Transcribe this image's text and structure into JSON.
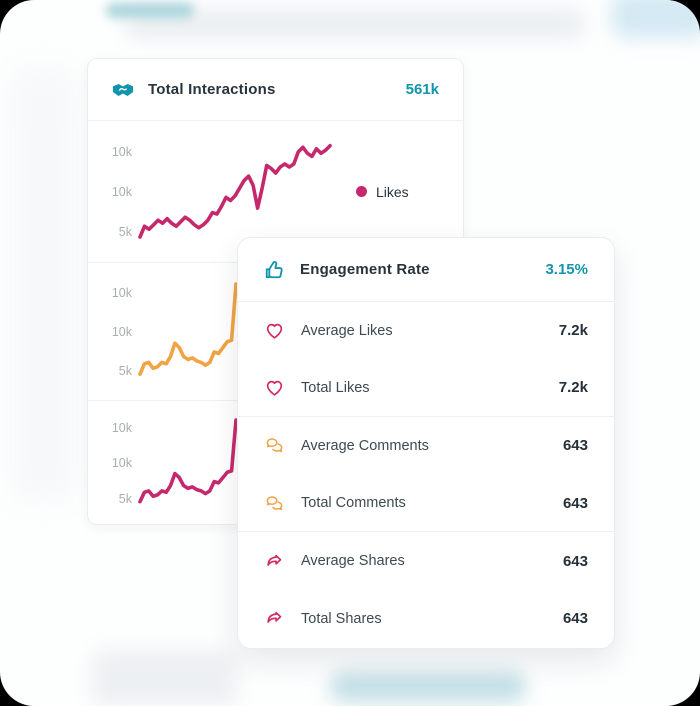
{
  "colors": {
    "accent_teal": "#1295AB",
    "pink": "#C6296B",
    "orange": "#F0A443",
    "dark_text": "#28333C"
  },
  "interactions_card": {
    "icon": "handshake-icon",
    "title": "Total Interactions",
    "value": "561k"
  },
  "engagement_card": {
    "icon": "thumbs-up-icon",
    "title": "Engagement Rate",
    "value": "3.15%",
    "rows": [
      {
        "icon": "heart-icon",
        "label": "Average Likes",
        "value": "7.2k",
        "group_end": false
      },
      {
        "icon": "heart-icon",
        "label": "Total Likes",
        "value": "7.2k",
        "group_end": true
      },
      {
        "icon": "comments-icon",
        "label": "Average Comments",
        "value": "643",
        "group_end": false
      },
      {
        "icon": "comments-icon",
        "label": "Total Comments",
        "value": "643",
        "group_end": true
      },
      {
        "icon": "share-icon",
        "label": "Average Shares",
        "value": "643",
        "group_end": false
      },
      {
        "icon": "share-icon",
        "label": "Total Shares",
        "value": "643",
        "group_end": false
      }
    ]
  },
  "chart_data": [
    {
      "type": "line",
      "legend": "Likes",
      "color": "#C6296B",
      "ylabels": [
        "10k",
        "10k",
        "5k"
      ],
      "ylim": [
        4.0,
        11.5
      ],
      "values": [
        4.7,
        5.4,
        5.2,
        5.5,
        5.8,
        5.6,
        5.9,
        5.6,
        5.4,
        5.7,
        6.0,
        5.8,
        5.5,
        5.3,
        5.5,
        5.8,
        6.3,
        6.2,
        6.7,
        7.3,
        7.1,
        7.4,
        7.9,
        8.4,
        8.7,
        8.1,
        6.6,
        7.9,
        9.4,
        9.2,
        8.9,
        9.3,
        9.5,
        9.3,
        9.5,
        10.3,
        10.6,
        10.2,
        10.0,
        10.5,
        10.2,
        10.4,
        10.7
      ]
    },
    {
      "type": "line",
      "color": "#F0A443",
      "ylabels": [
        "10k",
        "10k",
        "5k"
      ],
      "ylim": [
        4.0,
        11.5
      ],
      "values": [
        4.8,
        5.5,
        5.6,
        5.2,
        5.3,
        5.6,
        5.5,
        6.0,
        6.9,
        6.6,
        6.0,
        5.8,
        5.9,
        5.7,
        5.6,
        5.4,
        5.6,
        6.3,
        6.2,
        6.6,
        7.0,
        7.1,
        10.9
      ]
    },
    {
      "type": "line",
      "color": "#C6296B",
      "ylabels": [
        "10k",
        "10k",
        "5k"
      ],
      "ylim": [
        4.0,
        11.5
      ],
      "values": [
        4.8,
        5.5,
        5.6,
        5.2,
        5.3,
        5.6,
        5.5,
        6.0,
        6.9,
        6.6,
        6.0,
        5.8,
        5.9,
        5.7,
        5.6,
        5.4,
        5.6,
        6.3,
        6.2,
        6.6,
        7.0,
        7.1,
        10.9
      ]
    }
  ]
}
